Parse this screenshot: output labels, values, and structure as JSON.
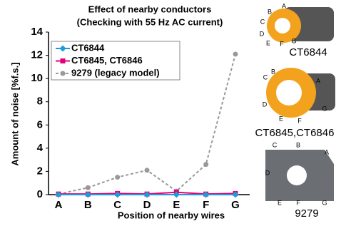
{
  "chart_data": {
    "type": "line",
    "title": [
      "Effect of nearby conductors",
      "(Checking with 55 Hz AC current)"
    ],
    "x_label": "Position of nearby wires",
    "y_label": "Amount of noise [%f.s.]",
    "categories": [
      "A",
      "B",
      "C",
      "D",
      "E",
      "F",
      "G"
    ],
    "series": [
      {
        "name": "CT6844",
        "color": "#1f9bd7",
        "marker": "diamond",
        "dashed": false,
        "values": [
          0,
          0,
          0,
          0,
          0,
          0,
          0
        ]
      },
      {
        "name": "CT6845, CT6846",
        "color": "#e2007a",
        "marker": "square",
        "dashed": false,
        "values": [
          0.05,
          0.05,
          0.1,
          0.05,
          0.2,
          0.05,
          0.1
        ]
      },
      {
        "name": "9279 (legacy model)",
        "color": "#999999",
        "marker": "circle",
        "dashed": true,
        "values": [
          0.05,
          0.6,
          1.5,
          2.1,
          0.3,
          2.6,
          12.1
        ]
      }
    ],
    "ylim": [
      0,
      14
    ],
    "yticks": [
      0,
      2,
      4,
      6,
      8,
      10,
      12,
      14
    ],
    "legend": "upper left",
    "grid": false
  },
  "products": [
    {
      "caption": "CT6844",
      "letters": [
        "A",
        "B",
        "C",
        "D",
        "E",
        "F",
        "G"
      ]
    },
    {
      "caption": "CT6845,CT6846",
      "letters": [
        "A",
        "B",
        "C",
        "D",
        "E",
        "F",
        "G"
      ]
    },
    {
      "caption": "9279",
      "letters": [
        "A",
        "B",
        "C",
        "D",
        "E",
        "F",
        "G"
      ]
    }
  ]
}
